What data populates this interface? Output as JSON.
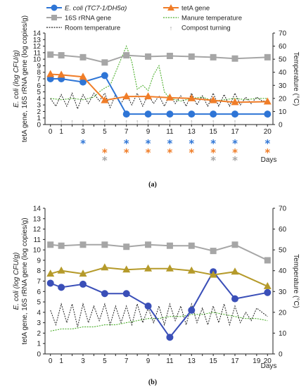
{
  "colors": {
    "ecoli": "#2e75d6",
    "ecoli_b": "#3a4fb8",
    "tetA": "#f07d28",
    "tetA_b": "#b59a2a",
    "rRNA": "#a6a6a6",
    "room": "#222222",
    "manure": "#4caf2c",
    "turning": "#9a9a9a"
  },
  "legend": {
    "ecoli": "E. coli (TC7-1/DH5α)",
    "tetA": "tetA gene",
    "rRNA": "16S rRNA gene",
    "manure": "Manure temperature",
    "room": "Room temperature",
    "turning": "Compost turning"
  },
  "chart_data": [
    {
      "type": "line",
      "caption": "(a)",
      "xlabel": "Days",
      "ylabel_lines": [
        "E. coli (log CFU/g)",
        "tetA gene, 16S rRNA gene (log copies/g)"
      ],
      "y2label": "Temperature (°C)",
      "xlim": [
        -0.5,
        20.5
      ],
      "ylim": [
        0,
        14
      ],
      "y2lim": [
        0,
        70
      ],
      "x_ticks": [
        0,
        1,
        2,
        3,
        4,
        5,
        6,
        7,
        8,
        9,
        10,
        11,
        12,
        13,
        14,
        15,
        16,
        17,
        18,
        19,
        20
      ],
      "x_tick_labels": [
        "0",
        "1",
        "3",
        "5",
        "7",
        "9",
        "11",
        "13",
        "15",
        "17",
        "20"
      ],
      "x_tick_label_values": [
        0,
        1,
        3,
        5,
        7,
        9,
        11,
        13,
        15,
        17,
        20
      ],
      "y_ticks": [
        0,
        1,
        2,
        3,
        4,
        5,
        6,
        7,
        8,
        9,
        10,
        11,
        12,
        13,
        14
      ],
      "y2_ticks": [
        0,
        10,
        20,
        30,
        40,
        50,
        60,
        70
      ],
      "series": [
        {
          "key": "ecoli",
          "x": [
            0,
            1,
            3,
            5,
            7,
            9,
            11,
            13,
            15,
            17,
            20
          ],
          "values": [
            7.0,
            7.0,
            6.5,
            7.5,
            1.6,
            1.6,
            1.6,
            1.6,
            1.6,
            1.6,
            1.6
          ]
        },
        {
          "key": "tetA",
          "x": [
            0,
            1,
            3,
            5,
            7,
            9,
            11,
            13,
            15,
            17,
            20
          ],
          "values": [
            7.7,
            7.6,
            7.3,
            3.7,
            4.3,
            4.3,
            4.1,
            4.0,
            3.7,
            3.4,
            3.5
          ]
        },
        {
          "key": "rRNA",
          "x": [
            0,
            1,
            3,
            5,
            7,
            9,
            11,
            13,
            15,
            17,
            20
          ],
          "values": [
            10.7,
            10.6,
            10.3,
            9.5,
            10.6,
            10.4,
            10.5,
            10.4,
            10.3,
            10.1,
            10.3
          ]
        }
      ],
      "room_temperature": {
        "x": [
          0,
          0.5,
          1,
          1.5,
          2,
          2.5,
          3,
          3.5,
          4,
          4.5,
          5,
          5.5,
          6,
          6.5,
          7,
          7.5,
          8,
          8.5,
          9,
          9.5,
          10,
          10.5,
          11,
          11.5,
          12,
          12.5,
          13,
          13.5,
          14,
          14.5,
          15,
          15.5,
          16,
          16.5,
          17,
          17.5,
          18,
          18.5,
          19,
          19.5,
          20
        ],
        "values": [
          20,
          14,
          23,
          14,
          24,
          12,
          23,
          16,
          24,
          18,
          24,
          13,
          23,
          16,
          23,
          15,
          24,
          14,
          23,
          16,
          22,
          14,
          23,
          16,
          22,
          14,
          24,
          15,
          22,
          14,
          24,
          14,
          23,
          14,
          24,
          15,
          21,
          16,
          21,
          18,
          18
        ]
      },
      "manure_temperature": {
        "x": [
          0,
          1,
          2,
          3,
          4,
          4.5,
          5,
          5.5,
          6,
          6.5,
          7,
          7.5,
          8,
          8.5,
          9,
          9.5,
          10,
          10.5,
          11,
          12,
          13,
          14,
          15,
          16,
          17,
          18,
          19,
          20
        ],
        "values": [
          20,
          19,
          20,
          19,
          21,
          25,
          28,
          30,
          40,
          50,
          60,
          48,
          27,
          30,
          26,
          38,
          45,
          25,
          20,
          18,
          20,
          21,
          18,
          19,
          20,
          19,
          20,
          20
        ]
      },
      "compost_turning_days": [
        1,
        2,
        3,
        5,
        7,
        8,
        9,
        11,
        13,
        15,
        17
      ],
      "significance": [
        {
          "day": 3,
          "marks": [
            "ecoli"
          ]
        },
        {
          "day": 5,
          "marks": [
            "tetA",
            "rRNA"
          ]
        },
        {
          "day": 7,
          "marks": [
            "ecoli",
            "tetA"
          ]
        },
        {
          "day": 9,
          "marks": [
            "ecoli",
            "tetA"
          ]
        },
        {
          "day": 11,
          "marks": [
            "ecoli",
            "tetA"
          ]
        },
        {
          "day": 13,
          "marks": [
            "ecoli",
            "tetA"
          ]
        },
        {
          "day": 15,
          "marks": [
            "ecoli",
            "tetA",
            "rRNA"
          ]
        },
        {
          "day": 17,
          "marks": [
            "ecoli",
            "tetA",
            "rRNA"
          ]
        },
        {
          "day": 20,
          "marks": [
            "ecoli",
            "tetA"
          ]
        }
      ],
      "asterisk": "*",
      "grid": false
    },
    {
      "type": "line",
      "caption": "(b)",
      "xlabel": "Days",
      "ylabel_lines": [
        "E. coli (log CFU/g)",
        "tetA gene, 16S rRNA gene (log copies/g)"
      ],
      "y2label": "Temperature (°C)",
      "xlim": [
        -0.5,
        20.5
      ],
      "ylim": [
        0,
        14
      ],
      "y2lim": [
        0,
        70
      ],
      "x_ticks": [
        0,
        1,
        2,
        3,
        4,
        5,
        6,
        7,
        8,
        9,
        10,
        11,
        12,
        13,
        14,
        15,
        16,
        17,
        18,
        19,
        20
      ],
      "x_tick_labels": [
        "0",
        "1",
        "3",
        "5",
        "7",
        "9",
        "11",
        "13",
        "15",
        "17",
        "19",
        "20"
      ],
      "x_tick_label_values": [
        0,
        1,
        3,
        5,
        7,
        9,
        11,
        13,
        15,
        17,
        19,
        20
      ],
      "y_ticks": [
        0,
        1,
        2,
        3,
        4,
        5,
        6,
        7,
        8,
        9,
        10,
        11,
        12,
        13,
        14
      ],
      "y2_ticks": [
        0,
        10,
        20,
        30,
        40,
        50,
        60,
        70
      ],
      "series": [
        {
          "key": "ecoli",
          "x": [
            0,
            1,
            3,
            5,
            7,
            9,
            11,
            13,
            15,
            17,
            20
          ],
          "values": [
            6.8,
            6.4,
            6.7,
            5.8,
            5.8,
            4.6,
            1.6,
            4.2,
            7.9,
            5.3,
            5.9
          ]
        },
        {
          "key": "tetA",
          "x": [
            0,
            1,
            3,
            5,
            7,
            9,
            11,
            13,
            15,
            17,
            20
          ],
          "values": [
            7.7,
            8.0,
            7.7,
            8.3,
            8.1,
            8.2,
            8.2,
            8.0,
            7.6,
            7.9,
            6.5
          ]
        },
        {
          "key": "rRNA",
          "x": [
            0,
            1,
            3,
            5,
            7,
            9,
            11,
            13,
            15,
            17,
            20
          ],
          "values": [
            10.5,
            10.4,
            10.5,
            10.5,
            10.3,
            10.5,
            10.4,
            10.4,
            9.9,
            10.5,
            9.0
          ]
        }
      ],
      "room_temperature": {
        "x": [
          0,
          0.5,
          1,
          1.5,
          2,
          2.5,
          3,
          3.5,
          4,
          4.5,
          5,
          5.5,
          6,
          6.5,
          7,
          7.5,
          8,
          8.5,
          9,
          9.5,
          10,
          10.5,
          11,
          11.5,
          12,
          12.5,
          13,
          13.5,
          14,
          14.5,
          15,
          15.5,
          16,
          16.5,
          17,
          17.5,
          18,
          18.5,
          19,
          19.5,
          20
        ],
        "values": [
          21,
          14,
          24,
          15,
          24,
          13,
          24,
          15,
          23,
          16,
          24,
          14,
          23,
          15,
          23,
          14,
          24,
          15,
          22,
          15,
          23,
          14,
          24,
          16,
          23,
          14,
          24,
          15,
          22,
          14,
          23,
          15,
          24,
          14,
          23,
          15,
          20,
          16,
          22,
          20,
          18
        ]
      },
      "manure_temperature": {
        "x": [
          0,
          1,
          2,
          3,
          4,
          5,
          6,
          7,
          8,
          9,
          10,
          11,
          12,
          13,
          14,
          15,
          16,
          17,
          18,
          19,
          20
        ],
        "values": [
          11,
          12,
          12,
          13,
          13,
          14,
          14,
          15,
          16,
          17,
          17,
          18,
          18,
          19,
          19,
          20,
          19,
          18,
          17,
          17,
          16
        ]
      },
      "grid": false
    }
  ]
}
